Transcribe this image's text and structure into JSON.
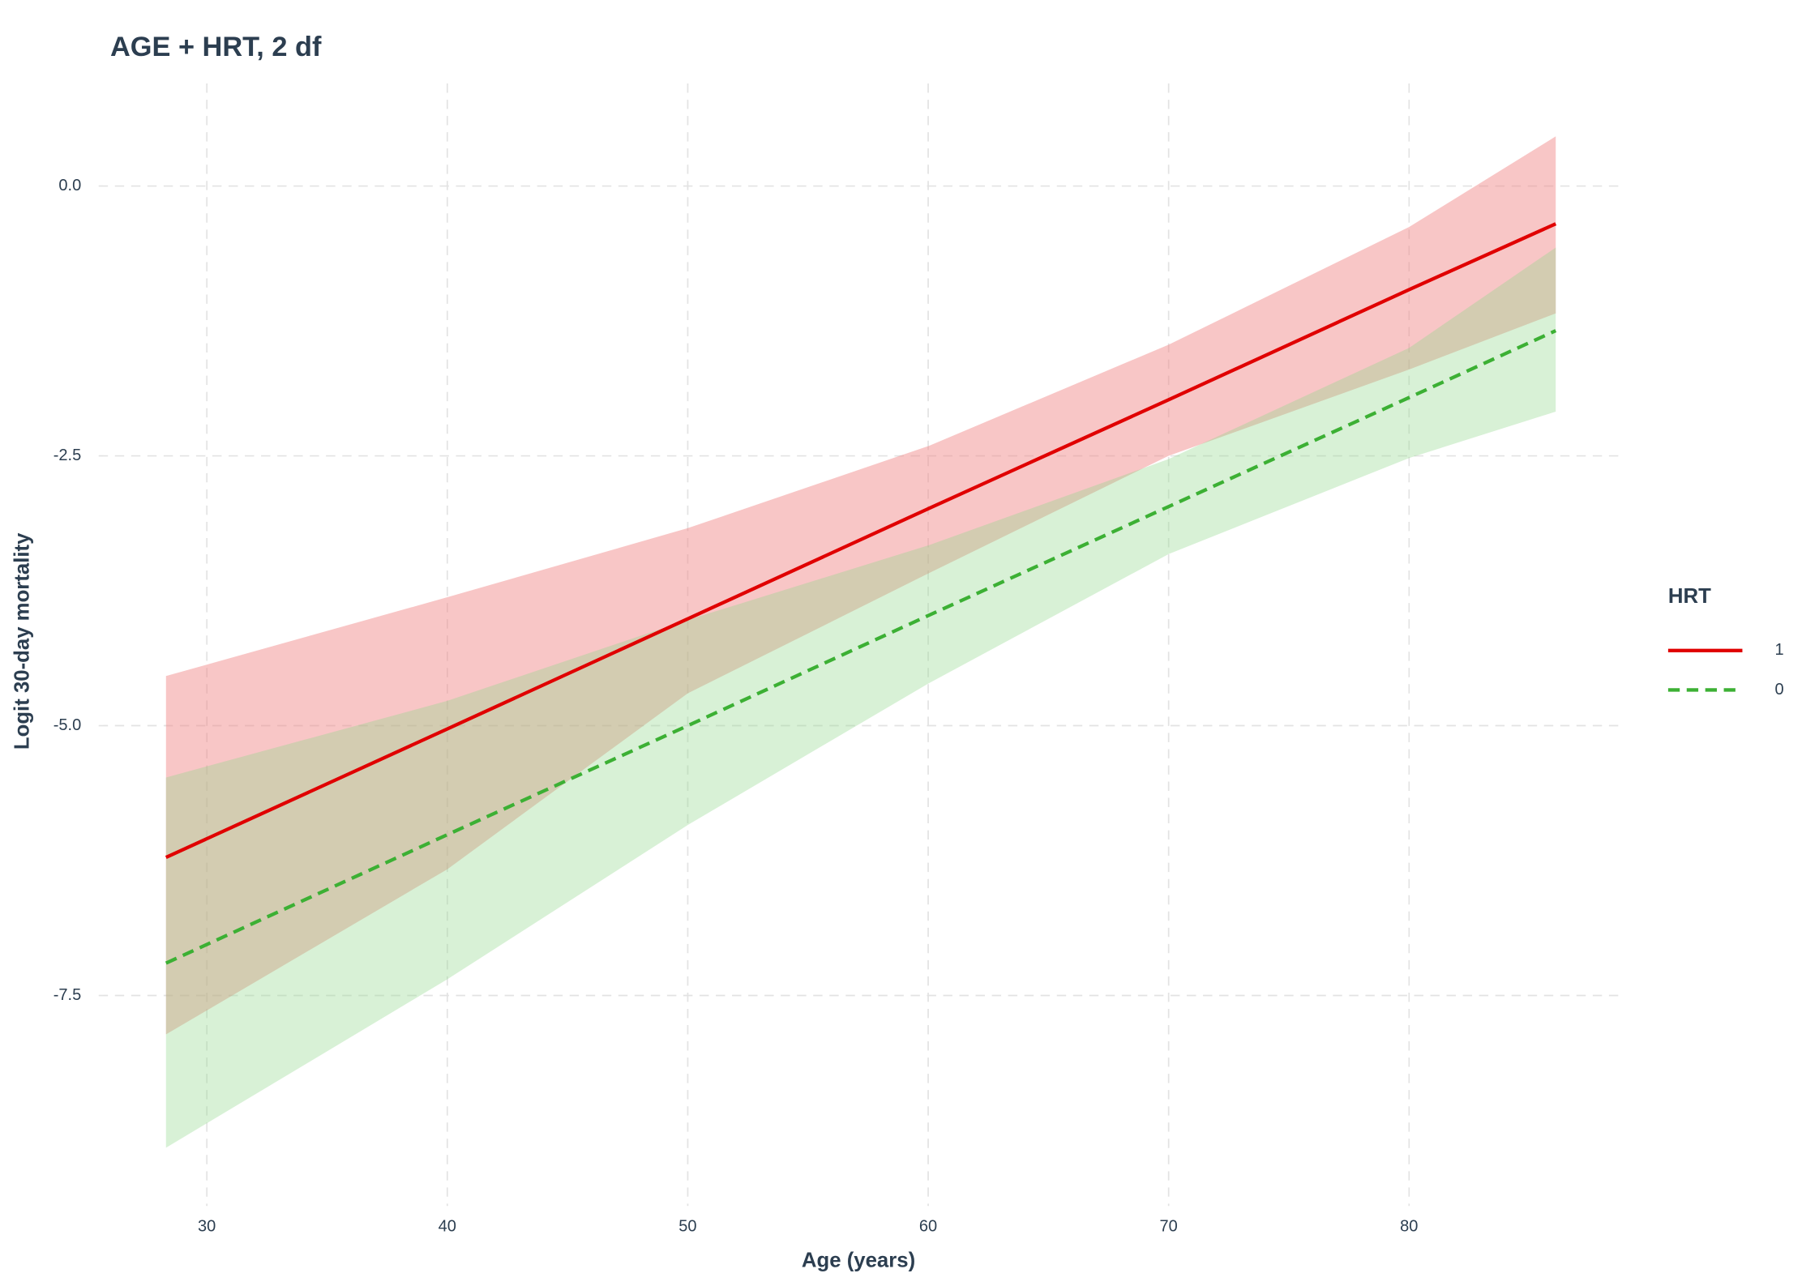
{
  "chart_data": {
    "type": "line",
    "title": "AGE + HRT, 2 df",
    "x_label": "Age (years)",
    "y_label": "Logit 30-day mortality",
    "x": [
      28.3,
      40,
      50,
      60,
      70,
      80,
      86.1
    ],
    "series": [
      {
        "name": "1",
        "color": "#e00000",
        "fill": "#f08080",
        "dashed": false,
        "values": [
          -6.22,
          -5.03,
          -4.01,
          -2.99,
          -1.98,
          -0.96,
          -0.35
        ],
        "lower": [
          -7.86,
          -6.33,
          -4.7,
          -3.59,
          -2.5,
          -1.7,
          -1.18
        ],
        "upper": [
          -4.54,
          -3.81,
          -3.17,
          -2.41,
          -1.47,
          -0.38,
          0.46
        ]
      },
      {
        "name": "0",
        "color": "#3cb034",
        "fill": "#8fd68a",
        "dashed": true,
        "values": [
          -7.2,
          -6.01,
          -5.0,
          -3.98,
          -2.97,
          -1.96,
          -1.34
        ],
        "lower": [
          -8.91,
          -7.35,
          -5.92,
          -4.61,
          -3.41,
          -2.52,
          -2.09
        ],
        "upper": [
          -5.48,
          -4.77,
          -4.02,
          -3.33,
          -2.53,
          -1.5,
          -0.57
        ]
      }
    ],
    "legend_title": "HRT",
    "legend": "right",
    "grid": true,
    "xlim": [
      25.5,
      88.7
    ],
    "ylim": [
      -9.45,
      0.95
    ],
    "xticks": [
      30,
      40,
      50,
      60,
      70,
      80
    ],
    "yticks": [
      -7.5,
      {
        "value": -5,
        "label": "-5.0"
      },
      -2.5,
      {
        "value": 0,
        "label": "0.0"
      }
    ]
  }
}
